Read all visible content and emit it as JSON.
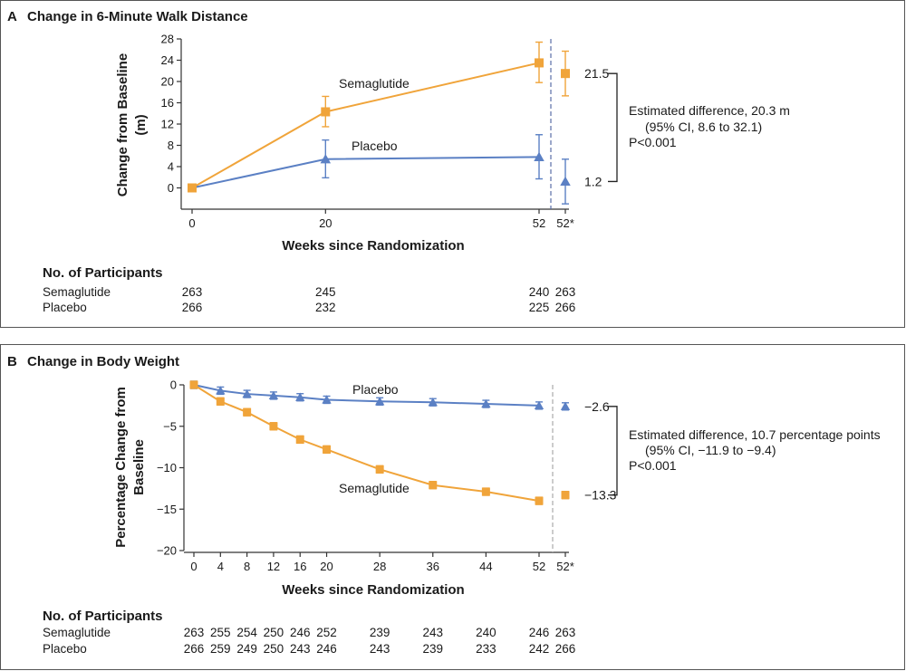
{
  "colors": {
    "semaglutide": "#f0a43a",
    "placebo": "#5b80c4",
    "frame": "#555555",
    "axis": "#333333"
  },
  "chart_data": [
    {
      "id": "A",
      "type": "line",
      "panel_letter": "A",
      "title": "Change in 6-Minute Walk Distance",
      "xlabel": "Weeks since Randomization",
      "ylabel_line1": "Change from Baseline",
      "ylabel_line2": "(m)",
      "ylim": [
        -4,
        28
      ],
      "yticks": [
        0,
        4,
        8,
        12,
        16,
        20,
        24,
        28
      ],
      "x": [
        0,
        20,
        52
      ],
      "xtick_labels": [
        "0",
        "20",
        "52",
        "52*"
      ],
      "series": [
        {
          "name": "Semaglutide",
          "key": "semaglutide",
          "marker": "square",
          "values": [
            0,
            14.3,
            23.5
          ],
          "err_low": [
            0,
            11.5,
            19.8
          ],
          "err_high": [
            0,
            17.2,
            27.4
          ],
          "final": 21.5,
          "final_low": 17.3,
          "final_high": 25.7,
          "final_label": "21.5"
        },
        {
          "name": "Placebo",
          "key": "placebo",
          "marker": "triangle",
          "values": [
            0,
            5.4,
            5.8
          ],
          "err_low": [
            0,
            1.9,
            1.7
          ],
          "err_high": [
            0,
            9.0,
            10.0
          ],
          "final": 1.2,
          "final_low": -3.0,
          "final_high": 5.4,
          "final_label": "1.2"
        }
      ],
      "annotation_lines": [
        "Estimated difference, 20.3 m",
        "(95% CI, 8.6 to 32.1)",
        "P<0.001"
      ],
      "participants": {
        "heading": "No. of Participants",
        "rows": [
          {
            "label": "Semaglutide",
            "values": [
              "263",
              "245",
              "240",
              "263"
            ]
          },
          {
            "label": "Placebo",
            "values": [
              "266",
              "232",
              "225",
              "266"
            ]
          }
        ]
      }
    },
    {
      "id": "B",
      "type": "line",
      "panel_letter": "B",
      "title": "Change in Body Weight",
      "xlabel": "Weeks since Randomization",
      "ylabel_line1": "Percentage Change from",
      "ylabel_line2": "Baseline",
      "ylim": [
        -20,
        0
      ],
      "yticks": [
        -20,
        -15,
        -10,
        -5,
        0
      ],
      "ytick_labels": [
        "−20",
        "−15",
        "−10",
        "−5",
        "0"
      ],
      "x": [
        0,
        4,
        8,
        12,
        16,
        20,
        28,
        36,
        44,
        52
      ],
      "xtick_labels": [
        "0",
        "4",
        "8",
        "12",
        "16",
        "20",
        "28",
        "36",
        "44",
        "52",
        "52*"
      ],
      "series": [
        {
          "name": "Placebo",
          "key": "placebo",
          "marker": "triangle",
          "values": [
            0,
            -0.7,
            -1.1,
            -1.3,
            -1.5,
            -1.8,
            -2.0,
            -2.1,
            -2.3,
            -2.5
          ],
          "final": -2.6,
          "final_label": "−2.6"
        },
        {
          "name": "Semaglutide",
          "key": "semaglutide",
          "marker": "square",
          "values": [
            0,
            -2.0,
            -3.3,
            -5.0,
            -6.6,
            -7.8,
            -10.2,
            -12.1,
            -12.9,
            -14.0
          ],
          "final": -13.3,
          "final_label": "−13.3"
        }
      ],
      "annotation_lines": [
        "Estimated difference, 10.7 percentage points",
        "(95% CI, −11.9 to −9.4)",
        "P<0.001"
      ],
      "participants": {
        "heading": "No. of Participants",
        "rows": [
          {
            "label": "Semaglutide",
            "values": [
              "263",
              "255",
              "254",
              "250",
              "246",
              "252",
              "239",
              "243",
              "240",
              "246",
              "263"
            ]
          },
          {
            "label": "Placebo",
            "values": [
              "266",
              "259",
              "249",
              "250",
              "243",
              "246",
              "243",
              "239",
              "233",
              "242",
              "266"
            ]
          }
        ]
      }
    }
  ]
}
